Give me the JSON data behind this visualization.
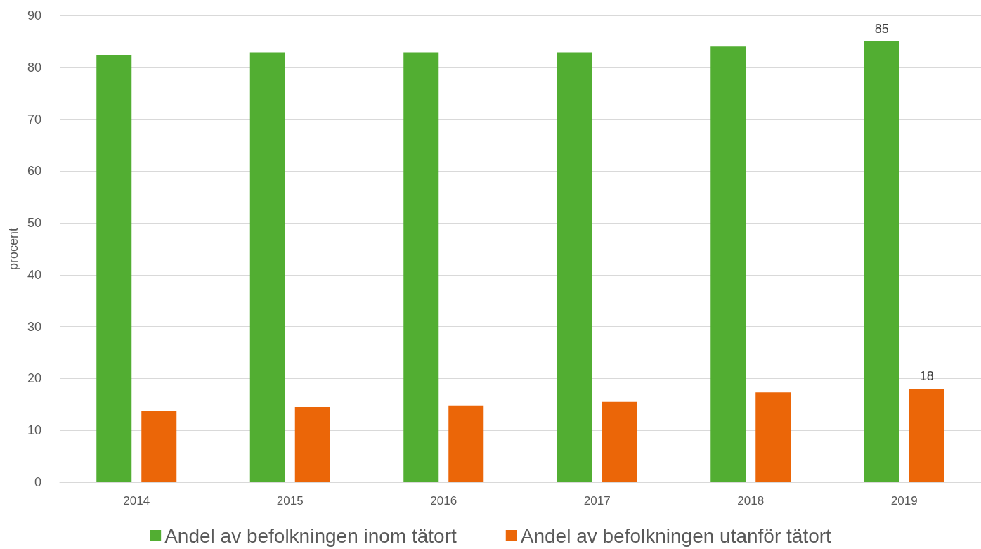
{
  "chart_data": {
    "type": "bar",
    "ylabel": "procent",
    "categories": [
      "2014",
      "2015",
      "2016",
      "2017",
      "2018",
      "2019"
    ],
    "series": [
      {
        "name": "Andel av befolkningen inom tätort",
        "color": "#52ae32",
        "values": [
          82.4,
          82.9,
          82.9,
          82.9,
          84.0,
          85
        ],
        "value_labels": [
          null,
          null,
          null,
          null,
          null,
          "85"
        ]
      },
      {
        "name": "Andel av befolkningen utanför tätort",
        "color": "#eb6608",
        "values": [
          13.8,
          14.5,
          14.8,
          15.5,
          17.3,
          18
        ],
        "value_labels": [
          null,
          null,
          null,
          null,
          null,
          "18"
        ]
      }
    ],
    "ylim": [
      0,
      90
    ],
    "yticks": [
      0,
      10,
      20,
      30,
      40,
      50,
      60,
      70,
      80,
      90
    ],
    "grid": "y",
    "legend": "bottom"
  }
}
